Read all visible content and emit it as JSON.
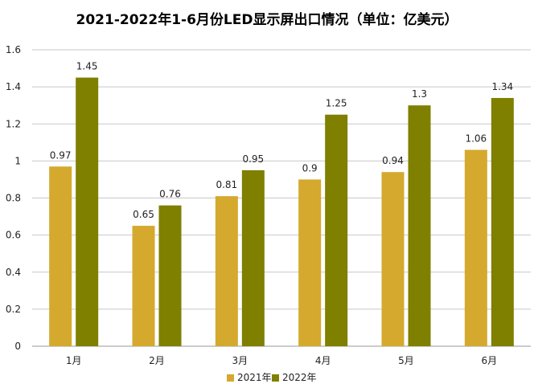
{
  "chart_data": {
    "type": "bar",
    "title": "2021-2022年1-6月份LED显示屏出口情况（单位：亿美元）",
    "categories": [
      "1月",
      "2月",
      "3月",
      "4月",
      "5月",
      "6月"
    ],
    "series": [
      {
        "name": "2021年",
        "color": "#d4a92e",
        "values": [
          0.97,
          0.65,
          0.81,
          0.9,
          0.94,
          1.06
        ],
        "labels": [
          "0.97",
          "0.65",
          "0.81",
          "0.9",
          "0.94",
          "1.06"
        ]
      },
      {
        "name": "2022年",
        "color": "#7f7f00",
        "values": [
          1.45,
          0.76,
          0.95,
          1.25,
          1.3,
          1.34
        ],
        "labels": [
          "1.45",
          "0.76",
          "0.95",
          "1.25",
          "1.3",
          "1.34"
        ]
      }
    ],
    "ylim": [
      0,
      1.6
    ],
    "yticks": [
      "0",
      "0.2",
      "0.4",
      "0.6",
      "0.8",
      "1",
      "1.2",
      "1.4",
      "1.6"
    ],
    "grid": true,
    "legend": "bottom",
    "xlabel": "",
    "ylabel": ""
  }
}
